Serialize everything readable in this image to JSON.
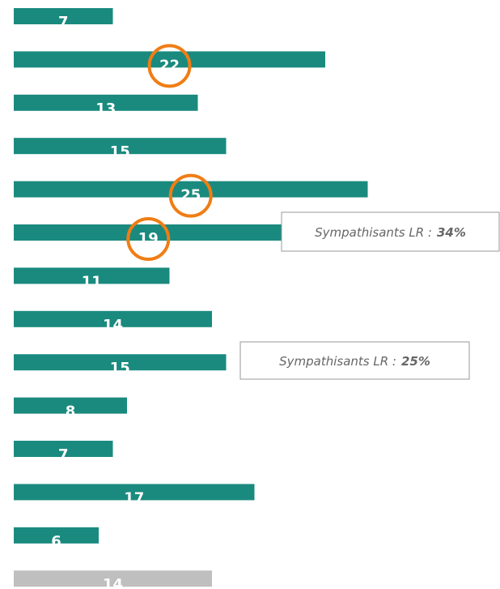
{
  "chart_data": {
    "type": "barh",
    "values": [
      7,
      22,
      13,
      15,
      25,
      19,
      11,
      14,
      15,
      8,
      7,
      17,
      6,
      14
    ],
    "colors": [
      "#1a8a7e",
      "#1a8a7e",
      "#1a8a7e",
      "#1a8a7e",
      "#1a8a7e",
      "#1a8a7e",
      "#1a8a7e",
      "#1a8a7e",
      "#1a8a7e",
      "#1a8a7e",
      "#1a8a7e",
      "#1a8a7e",
      "#1a8a7e",
      "#bfbfbf"
    ],
    "highlighted": [
      false,
      true,
      false,
      false,
      true,
      true,
      false,
      false,
      false,
      false,
      false,
      false,
      false,
      false
    ],
    "highlight_color": "#f07d14",
    "xlim": [
      0,
      34
    ],
    "annotations": [
      {
        "bar": 5,
        "text": "Sympathisants LR :",
        "value_label": "34%"
      },
      {
        "bar": 8,
        "text": "Sympathisants LR :",
        "value_label": "25%"
      }
    ]
  }
}
